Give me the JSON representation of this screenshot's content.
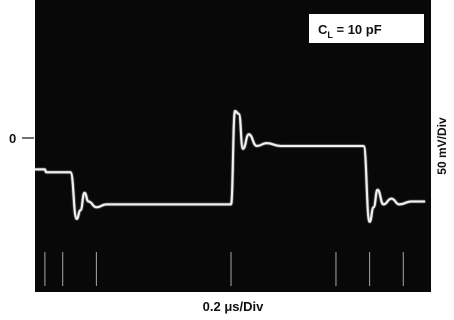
{
  "chart_data": {
    "type": "line",
    "title": "",
    "annotation": {
      "prefix": "C",
      "subscript": "L",
      "suffix": " = 10 pF"
    },
    "xlabel": "0.2 μs/Div",
    "ylabel": "50 mV/Div",
    "zero_marker": "0",
    "x_unit": "div",
    "y_unit": "div",
    "xlim": [
      0,
      10
    ],
    "ylim": [
      -3,
      2
    ],
    "grid": false,
    "background": "#080808",
    "trace_color": "#f2f2f2",
    "series": [
      {
        "x": [
          0.0,
          0.25,
          0.28,
          0.9,
          1.05,
          1.15,
          1.25,
          1.35,
          1.55,
          1.8,
          2.2,
          4.95
        ],
        "y": [
          -0.9,
          -0.9,
          -0.95,
          -0.95,
          -1.75,
          -1.6,
          -1.3,
          -1.45,
          -1.55,
          -1.5,
          -1.5,
          -1.5
        ]
      },
      {
        "x": [
          4.95,
          5.05,
          5.15,
          5.25,
          5.4,
          5.6,
          5.85,
          6.2,
          8.3
        ],
        "y": [
          -1.5,
          0.1,
          0.05,
          -0.55,
          -0.3,
          -0.5,
          -0.45,
          -0.5,
          -0.5
        ]
      },
      {
        "x": [
          8.3,
          8.45,
          8.55,
          8.65,
          8.8,
          9.0,
          9.2,
          9.5,
          9.85
        ],
        "y": [
          -0.5,
          -1.8,
          -1.55,
          -1.25,
          -1.5,
          -1.4,
          -1.5,
          -1.45,
          -1.45
        ]
      }
    ],
    "tick_spikes_x": [
      0.25,
      0.7,
      1.55,
      4.95,
      7.6,
      8.45,
      9.3
    ]
  }
}
